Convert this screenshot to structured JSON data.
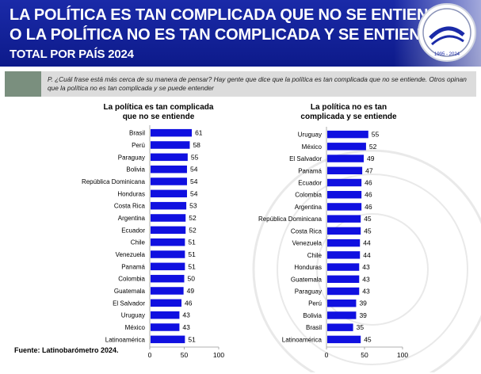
{
  "header": {
    "title_line1": "LA POLÍTICA ES TAN COMPLICADA QUE NO SE ENTIENDE",
    "title_line2": "O LA POLÍTICA NO ES TAN COMPLICADA Y SE ENTIENDE",
    "title_line3": "TOTAL POR PAÍS 2024",
    "seal_year_text": "1995 - 2024"
  },
  "question": "P. ¿Cuál frase está más cerca de su manera de pensar? Hay gente que dice que la política es tan complicada que no se entiende. Otros opinan que la política no es tan complicada y se puede entender",
  "source": "Fuente: Latinobarómetro 2024.",
  "colors": {
    "bar": "#1010e0",
    "header": "#12219b",
    "question_bg": "#dcdcdc",
    "question_accent": "#7a8f7e"
  },
  "chart_data": [
    {
      "type": "bar",
      "orientation": "horizontal",
      "title": "La política es tan complicada que no se entiende",
      "title_lines": [
        "La política es tan complicada",
        "que no se entiende"
      ],
      "categories": [
        "Brasil",
        "Perú",
        "Paraguay",
        "Bolivia",
        "República Dominicana",
        "Honduras",
        "Costa Rica",
        "Argentina",
        "Ecuador",
        "Chile",
        "Venezuela",
        "Panamá",
        "Colombia",
        "Guatemala",
        "El Salvador",
        "Uruguay",
        "México",
        "Latinoamérica"
      ],
      "values": [
        61,
        58,
        55,
        54,
        54,
        54,
        53,
        52,
        52,
        51,
        51,
        51,
        50,
        49,
        46,
        43,
        43,
        51
      ],
      "xlim": [
        0,
        100
      ],
      "xticks": [
        0,
        50,
        100
      ],
      "legend": "none",
      "grid": false
    },
    {
      "type": "bar",
      "orientation": "horizontal",
      "title": "La política no es tan complicada y se entiende",
      "title_lines": [
        "La política no es tan",
        "complicada y se entiende"
      ],
      "categories": [
        "Uruguay",
        "México",
        "El Salvador",
        "Panamá",
        "Ecuador",
        "Colombia",
        "Argentina",
        "República Dominicana",
        "Costa Rica",
        "Venezuela",
        "Chile",
        "Honduras",
        "Guatemala",
        "Paraguay",
        "Perú",
        "Bolivia",
        "Brasil",
        "Latinoamérica"
      ],
      "values": [
        55,
        52,
        49,
        47,
        46,
        46,
        46,
        45,
        45,
        44,
        44,
        43,
        43,
        43,
        39,
        39,
        35,
        45
      ],
      "xlim": [
        0,
        100
      ],
      "xticks": [
        0,
        50,
        100
      ],
      "legend": "none",
      "grid": false
    }
  ]
}
